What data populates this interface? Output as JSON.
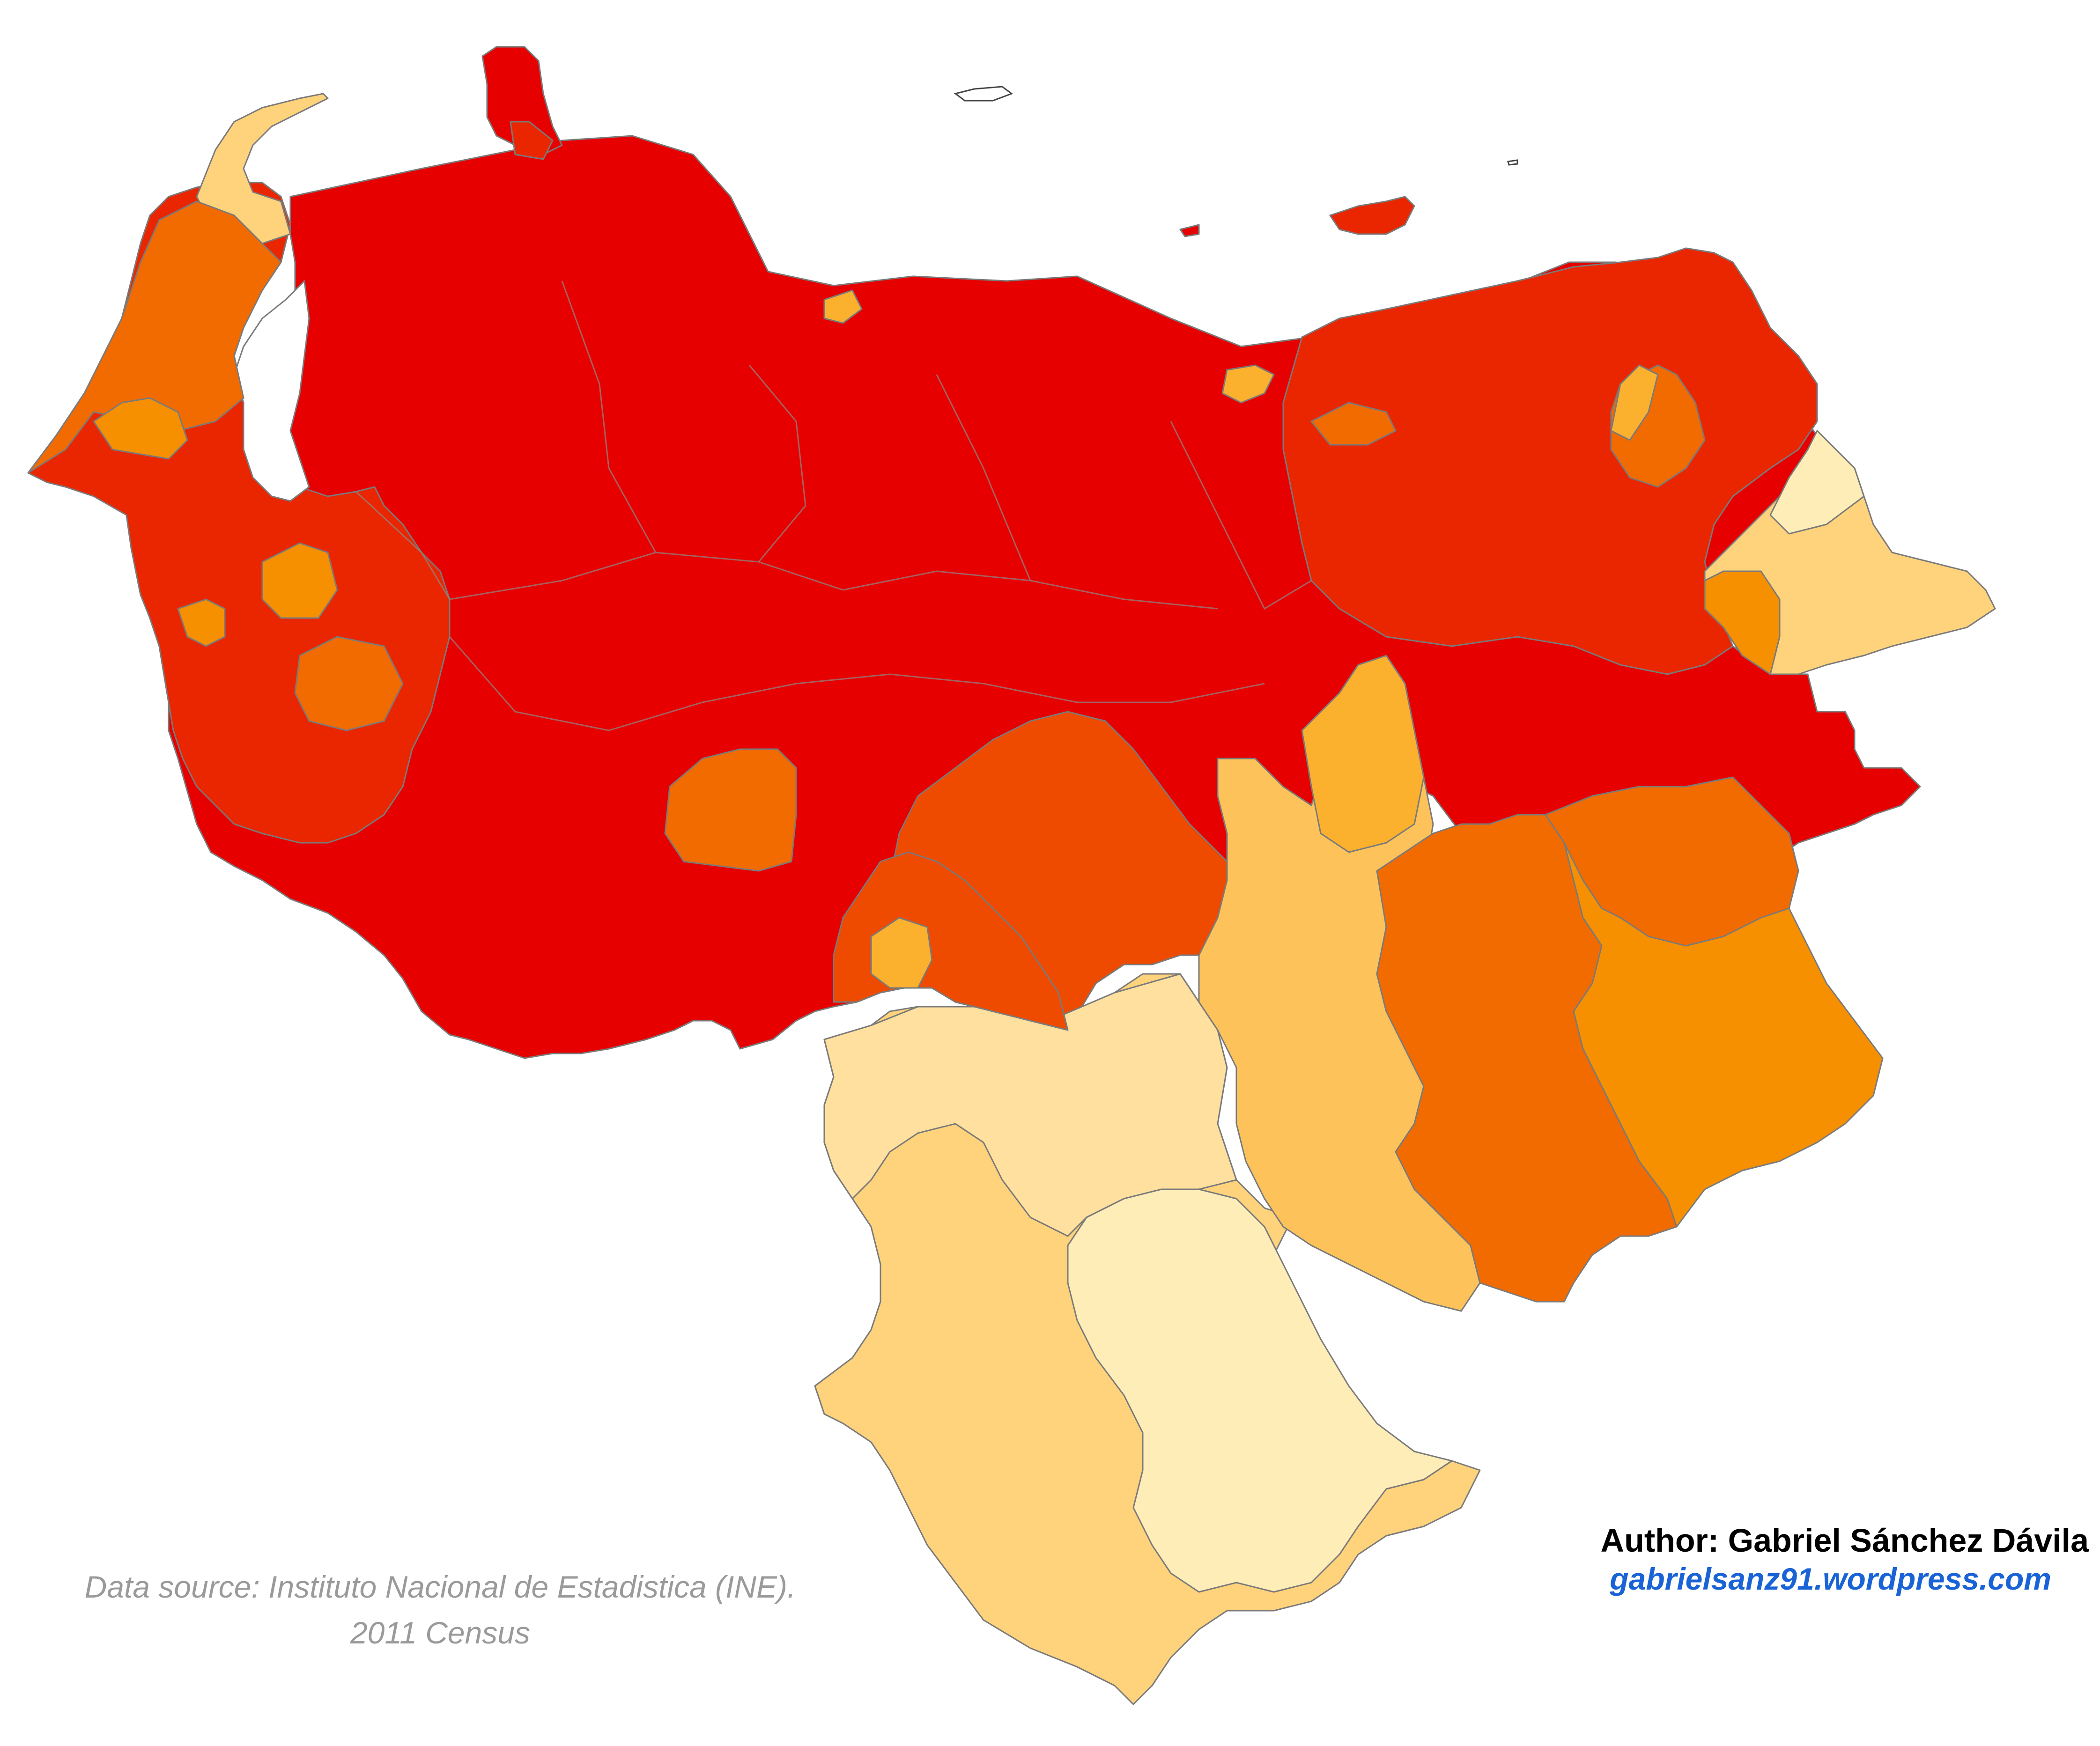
{
  "map": {
    "country": "Venezuela",
    "colors": {
      "darkest_red": "#e60000",
      "red": "#ea2600",
      "red_orange": "#ee4a00",
      "dark_orange": "#f26b00",
      "orange": "#f69000",
      "amber": "#fbb02e",
      "light_orange": "#fdc35a",
      "pale_orange": "#ffd27c",
      "paler": "#ffe09e",
      "palest": "#ffedb8"
    }
  },
  "footer": {
    "source_line1": "Data source: Instituto Nacional de Estadistica (INE).",
    "source_line2": "2011 Census"
  },
  "credits": {
    "author": "Author: Gabriel Sánchez Dávila",
    "website": "gabrielsanz91.wordpress.com"
  }
}
